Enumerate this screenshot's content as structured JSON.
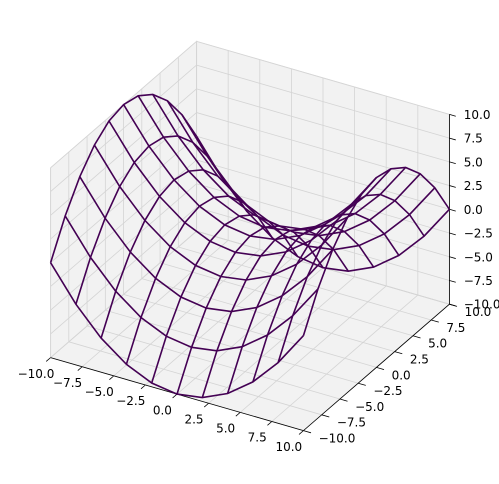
{
  "chart_data": {
    "type": "wireframe",
    "color": "#440154",
    "grid": true,
    "x": [
      -10,
      -8,
      -6,
      -4,
      -2,
      0,
      2,
      4,
      6,
      8,
      10
    ],
    "y": [
      -10,
      -8,
      -6,
      -4,
      -2,
      0,
      2,
      4,
      6,
      8,
      10
    ],
    "z": [
      [
        0,
        -3.6,
        -6.4,
        -8.4,
        -9.6,
        -10,
        -9.6,
        -8.4,
        -6.4,
        -3.6,
        0
      ],
      [
        3.6,
        0,
        -2.8,
        -4.8,
        -6,
        -6.4,
        -6,
        -4.8,
        -2.8,
        0,
        3.6
      ],
      [
        6.4,
        2.8,
        0,
        -2,
        -3.2,
        -3.6,
        -3.2,
        -2,
        0,
        2.8,
        6.4
      ],
      [
        8.4,
        4.8,
        2,
        0,
        -1.2,
        -1.6,
        -1.2,
        0,
        2,
        4.8,
        8.4
      ],
      [
        9.6,
        6,
        3.2,
        1.2,
        0,
        -0.4,
        0,
        1.2,
        3.2,
        6,
        9.6
      ],
      [
        10,
        6.4,
        3.6,
        1.6,
        0.4,
        0,
        0.4,
        1.6,
        3.6,
        6.4,
        10
      ],
      [
        9.6,
        6,
        3.2,
        1.2,
        0,
        -0.4,
        0,
        1.2,
        3.2,
        6,
        9.6
      ],
      [
        8.4,
        4.8,
        2,
        0,
        -1.2,
        -1.6,
        -1.2,
        0,
        2,
        4.8,
        8.4
      ],
      [
        6.4,
        2.8,
        0,
        -2,
        -3.2,
        -3.6,
        -3.2,
        -2,
        0,
        2.8,
        6.4
      ],
      [
        3.6,
        0,
        -2.8,
        -4.8,
        -6,
        -6.4,
        -6,
        -4.8,
        -2.8,
        0,
        3.6
      ],
      [
        0,
        -3.6,
        -6.4,
        -8.4,
        -9.6,
        -10,
        -9.6,
        -8.4,
        -6.4,
        -3.6,
        0
      ]
    ],
    "xlim": [
      -10,
      10
    ],
    "ylim": [
      -10,
      10
    ],
    "zlim": [
      -10,
      10
    ],
    "xticks": [
      {
        "value": -10,
        "label": "−10.0"
      },
      {
        "value": -7.5,
        "label": "−7.5"
      },
      {
        "value": -5,
        "label": "−5.0"
      },
      {
        "value": -2.5,
        "label": "−2.5"
      },
      {
        "value": 0,
        "label": "0.0"
      },
      {
        "value": 2.5,
        "label": "2.5"
      },
      {
        "value": 5,
        "label": "5.0"
      },
      {
        "value": 7.5,
        "label": "7.5"
      },
      {
        "value": 10,
        "label": "10.0"
      }
    ],
    "yticks": [
      {
        "value": -10,
        "label": "−10.0"
      },
      {
        "value": -7.5,
        "label": "−7.5"
      },
      {
        "value": -5,
        "label": "−5.0"
      },
      {
        "value": -2.5,
        "label": "−2.5"
      },
      {
        "value": 0,
        "label": "0.0"
      },
      {
        "value": 2.5,
        "label": "2.5"
      },
      {
        "value": 5,
        "label": "5.0"
      },
      {
        "value": 7.5,
        "label": "7.5"
      },
      {
        "value": 10,
        "label": "10.0"
      }
    ],
    "zticks": [
      {
        "value": -10,
        "label": "−10.0"
      },
      {
        "value": -7.5,
        "label": "−7.5"
      },
      {
        "value": -5,
        "label": "−5.0"
      },
      {
        "value": -2.5,
        "label": "−2.5"
      },
      {
        "value": 0,
        "label": "0.0"
      },
      {
        "value": 2.5,
        "label": "2.5"
      },
      {
        "value": 5,
        "label": "5.0"
      },
      {
        "value": 7.5,
        "label": "7.5"
      },
      {
        "value": 10,
        "label": "10.0"
      }
    ]
  }
}
